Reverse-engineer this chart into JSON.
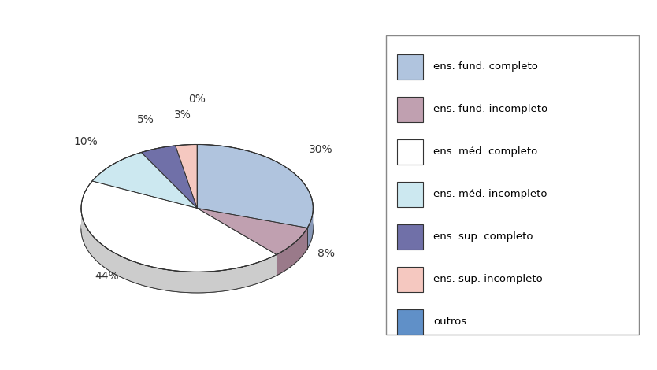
{
  "labels": [
    "ens. fund. completo",
    "ens. fund. incompleto",
    "ens. méd. completo",
    "ens. méd. incompleto",
    "ens. sup. completo",
    "ens. sup. incompleto",
    "outros"
  ],
  "values": [
    30,
    8,
    44,
    10,
    5,
    3,
    0
  ],
  "colors": [
    "#b0c4de",
    "#c0a0b0",
    "#ffffff",
    "#cce8f0",
    "#7070a8",
    "#f5c8c0",
    "#6090c8"
  ],
  "shadow_colors": [
    "#8899b8",
    "#9a7a8a",
    "#cccccc",
    "#a0c4d4",
    "#505085",
    "#d8a8a0",
    "#4070a8"
  ],
  "pct_labels": [
    "30%",
    "8%",
    "44%",
    "10%",
    "5%",
    "3%",
    "0%"
  ],
  "background_color": "#ffffff",
  "edge_color": "#333333",
  "legend_labels": [
    "ens. fund. completo",
    "ens. fund. incompleto",
    "ens. méd. completo",
    "ens. méd. incompleto",
    "ens. sup. completo",
    "ens. sup. incompleto",
    "outros"
  ]
}
